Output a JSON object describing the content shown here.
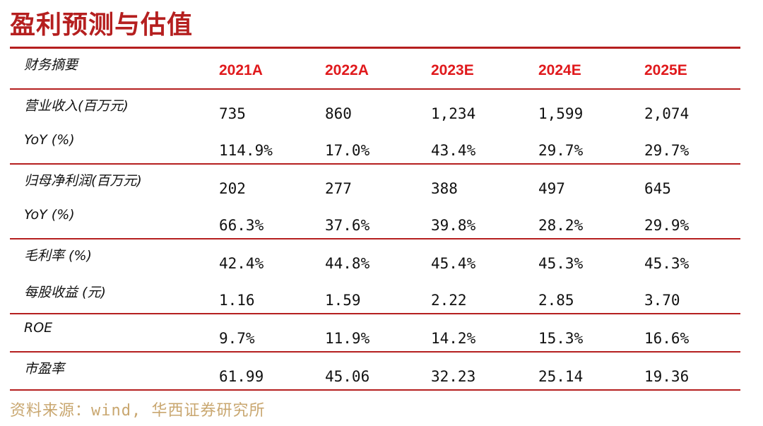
{
  "title": "盈利预测与估值",
  "header": {
    "label": "财务摘要",
    "years": [
      "2021A",
      "2022A",
      "2023E",
      "2024E",
      "2025E"
    ]
  },
  "groups": [
    {
      "rows": [
        {
          "label": "营业收入(百万元)",
          "values": [
            "735",
            "860",
            "1,234",
            "1,599",
            "2,074"
          ]
        },
        {
          "label": "YoY (%)",
          "values": [
            "114.9%",
            "17.0%",
            "43.4%",
            "29.7%",
            "29.7%"
          ]
        }
      ]
    },
    {
      "rows": [
        {
          "label": "归母净利润(百万元)",
          "values": [
            "202",
            "277",
            "388",
            "497",
            "645"
          ]
        },
        {
          "label": "YoY (%)",
          "values": [
            "66.3%",
            "37.6%",
            "39.8%",
            "28.2%",
            "29.9%"
          ]
        }
      ]
    },
    {
      "rows": [
        {
          "label": "毛利率 (%)",
          "values": [
            "42.4%",
            "44.8%",
            "45.4%",
            "45.3%",
            "45.3%"
          ]
        },
        {
          "label": "每股收益 (元)",
          "values": [
            "1.16",
            "1.59",
            "2.22",
            "2.85",
            "3.70"
          ]
        }
      ]
    },
    {
      "rows": [
        {
          "label": "ROE",
          "values": [
            "9.7%",
            "11.9%",
            "14.2%",
            "15.3%",
            "16.6%"
          ]
        }
      ]
    },
    {
      "rows": [
        {
          "label": "市盈率",
          "values": [
            "61.99",
            "45.06",
            "32.23",
            "25.14",
            "19.36"
          ]
        }
      ]
    }
  ],
  "source": "资料来源：wind, 华西证券研究所",
  "colors": {
    "accent": "#b51f1f",
    "year_header": "#e0191c",
    "source_text": "#c9a770"
  }
}
